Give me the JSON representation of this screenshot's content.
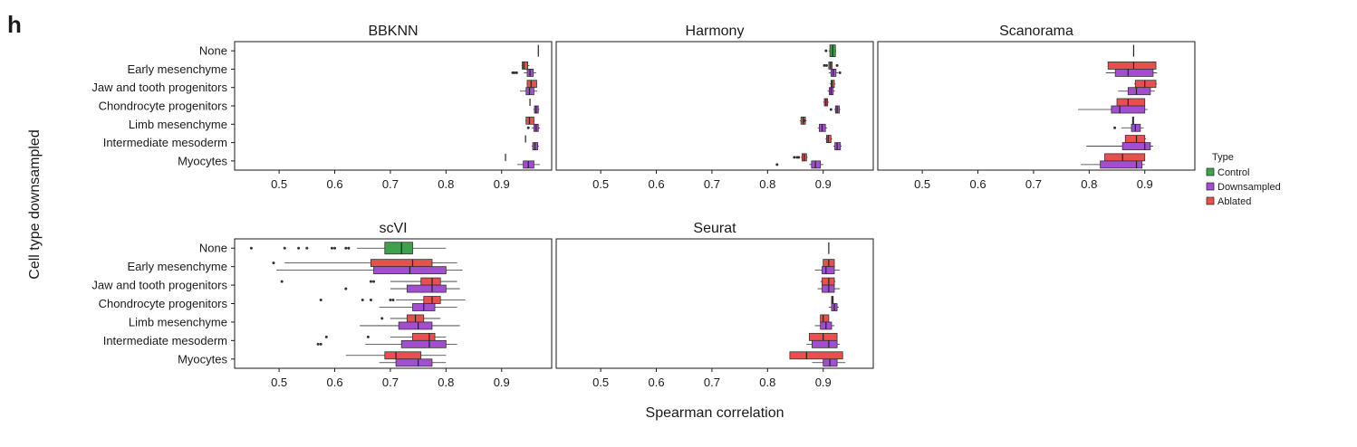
{
  "figure": {
    "panel_letter": "h",
    "y_axis_title": "Cell type downsampled",
    "x_axis_title": "Spearman correlation"
  },
  "legend": {
    "title": "Type",
    "items": [
      {
        "label": "Control",
        "color": "#3fa14b"
      },
      {
        "label": "Downsampled",
        "color": "#a24ed1"
      },
      {
        "label": "Ablated",
        "color": "#e8504f"
      }
    ]
  },
  "chart_data": {
    "type": "boxplot",
    "categories": [
      "None",
      "Early mesenchyme",
      "Jaw and tooth progenitors",
      "Chondrocyte progenitors",
      "Limb mesenchyme",
      "Intermediate mesoderm",
      "Myocytes"
    ],
    "xlim": [
      0.42,
      0.99
    ],
    "ticks": [
      0.5,
      0.6,
      0.7,
      0.8,
      0.9
    ],
    "tick_labels": [
      "0.5",
      "0.6",
      "0.7",
      "0.8",
      "0.9"
    ],
    "colors": {
      "control": "#3fa14b",
      "downsampled": "#a24ed1",
      "ablated": "#e8504f"
    },
    "panels": [
      {
        "title": "BBKNN",
        "boxes": {
          "None": {
            "control": [
              0.966,
              0.966,
              0.966,
              0.966,
              0.966
            ]
          },
          "Early mesenchyme": {
            "ablated": [
              0.936,
              0.937,
              0.94,
              0.947,
              0.95
            ],
            "downsampled": [
              0.94,
              0.946,
              0.951,
              0.957,
              0.962
            ],
            "outliers_downsampled": [
              0.92,
              0.923,
              0.927
            ]
          },
          "Jaw and tooth progenitors": {
            "ablated": [
              0.945,
              0.946,
              0.953,
              0.963,
              0.964
            ],
            "downsampled": [
              0.933,
              0.944,
              0.95,
              0.958,
              0.964
            ]
          },
          "Chondrocyte progenitors": {
            "ablated": [
              0.951,
              0.951,
              0.951,
              0.951,
              0.951
            ],
            "downsampled": [
              0.957,
              0.959,
              0.962,
              0.966,
              0.968
            ]
          },
          "Limb mesenchyme": {
            "ablated": [
              0.943,
              0.944,
              0.95,
              0.958,
              0.959
            ],
            "downsampled": [
              0.954,
              0.958,
              0.962,
              0.966,
              0.969
            ],
            "outliers_downsampled": [
              0.948
            ]
          },
          "Intermediate mesoderm": {
            "ablated": [
              0.943,
              0.943,
              0.943,
              0.943,
              0.943
            ],
            "downsampled": [
              0.954,
              0.956,
              0.96,
              0.965,
              0.967
            ]
          },
          "Myocytes": {
            "ablated": [
              0.907,
              0.907,
              0.907,
              0.907,
              0.907
            ],
            "downsampled": [
              0.928,
              0.939,
              0.948,
              0.958,
              0.969
            ]
          }
        }
      },
      {
        "title": "Harmony",
        "boxes": {
          "None": {
            "control": [
              0.91,
              0.912,
              0.917,
              0.922,
              0.923
            ],
            "outliers_control": [
              0.905
            ]
          },
          "Early mesenchyme": {
            "ablated": [
              0.91,
              0.91,
              0.913,
              0.916,
              0.916
            ],
            "downsampled": [
              0.91,
              0.914,
              0.918,
              0.923,
              0.927
            ],
            "outliers_ablated": [
              0.902,
              0.906,
              0.925
            ],
            "outliers_downsampled": [
              0.93
            ]
          },
          "Jaw and tooth progenitors": {
            "ablated": [
              0.912,
              0.914,
              0.916,
              0.92,
              0.922
            ],
            "downsampled": [
              0.908,
              0.911,
              0.914,
              0.918,
              0.921
            ]
          },
          "Chondrocyte progenitors": {
            "ablated": [
              0.9,
              0.902,
              0.905,
              0.908,
              0.91
            ],
            "downsampled": [
              0.92,
              0.922,
              0.925,
              0.929,
              0.931
            ],
            "outliers_downsampled": [
              0.914
            ]
          },
          "Limb mesenchyme": {
            "ablated": [
              0.858,
              0.86,
              0.864,
              0.868,
              0.87
            ],
            "downsampled": [
              0.89,
              0.893,
              0.898,
              0.904,
              0.907
            ],
            "outliers_ablated": [
              0.866
            ]
          },
          "Intermediate mesoderm": {
            "ablated": [
              0.904,
              0.906,
              0.909,
              0.914,
              0.916
            ],
            "downsampled": [
              0.918,
              0.921,
              0.925,
              0.931,
              0.933
            ]
          },
          "Myocytes": {
            "ablated": [
              0.86,
              0.862,
              0.866,
              0.87,
              0.872
            ],
            "downsampled": [
              0.875,
              0.879,
              0.886,
              0.895,
              0.9
            ],
            "outliers_ablated": [
              0.848,
              0.853,
              0.856
            ],
            "outliers_downsampled": [
              0.817
            ]
          }
        }
      },
      {
        "title": "Scanorama",
        "boxes": {
          "None": {
            "control": [
              0.88,
              0.88,
              0.88,
              0.88,
              0.88
            ]
          },
          "Early mesenchyme": {
            "ablated": [
              0.834,
              0.834,
              0.88,
              0.92,
              0.92
            ],
            "downsampled": [
              0.83,
              0.847,
              0.87,
              0.915,
              0.922
            ]
          },
          "Jaw and tooth progenitors": {
            "ablated": [
              0.881,
              0.883,
              0.9,
              0.92,
              0.922
            ],
            "downsampled": [
              0.852,
              0.87,
              0.885,
              0.91,
              0.918
            ]
          },
          "Chondrocyte progenitors": {
            "ablated": [
              0.85,
              0.85,
              0.87,
              0.9,
              0.9
            ],
            "downsampled": [
              0.78,
              0.84,
              0.855,
              0.9,
              0.905
            ]
          },
          "Limb mesenchyme": {
            "ablated": [
              0.878,
              0.878,
              0.879,
              0.88,
              0.88
            ],
            "downsampled": [
              0.858,
              0.876,
              0.883,
              0.892,
              0.898
            ],
            "outliers_downsampled": [
              0.846
            ]
          },
          "Intermediate mesoderm": {
            "ablated": [
              0.865,
              0.865,
              0.885,
              0.9,
              0.902
            ],
            "downsampled": [
              0.795,
              0.86,
              0.9,
              0.91,
              0.915
            ]
          },
          "Myocytes": {
            "ablated": [
              0.828,
              0.828,
              0.86,
              0.9,
              0.9
            ],
            "downsampled": [
              0.785,
              0.82,
              0.885,
              0.895,
              0.9
            ]
          }
        }
      },
      {
        "title": "scVI",
        "boxes": {
          "None": {
            "control": [
              0.64,
              0.69,
              0.72,
              0.74,
              0.8
            ],
            "outliers_control": [
              0.45,
              0.51,
              0.535,
              0.55,
              0.595,
              0.6,
              0.62,
              0.625
            ]
          },
          "Early mesenchyme": {
            "ablated": [
              0.51,
              0.665,
              0.74,
              0.775,
              0.82
            ],
            "downsampled": [
              0.495,
              0.67,
              0.735,
              0.8,
              0.83
            ],
            "outliers_ablated": [
              0.49
            ]
          },
          "Jaw and tooth progenitors": {
            "ablated": [
              0.7,
              0.755,
              0.775,
              0.79,
              0.82
            ],
            "downsampled": [
              0.7,
              0.73,
              0.775,
              0.8,
              0.825
            ],
            "outliers_ablated": [
              0.505,
              0.665,
              0.67
            ],
            "outliers_downsampled": [
              0.62
            ]
          },
          "Chondrocyte progenitors": {
            "ablated": [
              0.71,
              0.76,
              0.775,
              0.79,
              0.835
            ],
            "downsampled": [
              0.68,
              0.74,
              0.76,
              0.78,
              0.82
            ],
            "outliers_ablated": [
              0.575,
              0.65,
              0.665,
              0.7,
              0.705
            ]
          },
          "Limb mesenchyme": {
            "ablated": [
              0.7,
              0.73,
              0.745,
              0.76,
              0.79
            ],
            "downsampled": [
              0.645,
              0.715,
              0.75,
              0.775,
              0.825
            ],
            "outliers_ablated": [
              0.685
            ]
          },
          "Intermediate mesoderm": {
            "ablated": [
              0.7,
              0.74,
              0.77,
              0.78,
              0.8
            ],
            "downsampled": [
              0.655,
              0.72,
              0.77,
              0.8,
              0.82
            ],
            "outliers_ablated": [
              0.585,
              0.66
            ],
            "outliers_downsampled": [
              0.57,
              0.575
            ]
          },
          "Myocytes": {
            "ablated": [
              0.62,
              0.69,
              0.71,
              0.755,
              0.8
            ],
            "downsampled": [
              0.68,
              0.71,
              0.75,
              0.775,
              0.8
            ]
          }
        }
      },
      {
        "title": "Seurat",
        "boxes": {
          "None": {
            "control": [
              0.91,
              0.91,
              0.91,
              0.91,
              0.91
            ]
          },
          "Early mesenchyme": {
            "ablated": [
              0.9,
              0.9,
              0.91,
              0.92,
              0.92
            ],
            "downsampled": [
              0.885,
              0.898,
              0.905,
              0.92,
              0.93
            ]
          },
          "Jaw and tooth progenitors": {
            "ablated": [
              0.895,
              0.898,
              0.91,
              0.92,
              0.922
            ],
            "downsampled": [
              0.89,
              0.898,
              0.91,
              0.92,
              0.93
            ]
          },
          "Chondrocyte progenitors": {
            "ablated": [
              0.915,
              0.915,
              0.917,
              0.918,
              0.918
            ],
            "downsampled": [
              0.91,
              0.915,
              0.92,
              0.925,
              0.928
            ]
          },
          "Limb mesenchyme": {
            "ablated": [
              0.895,
              0.895,
              0.9,
              0.91,
              0.91
            ],
            "downsampled": [
              0.885,
              0.895,
              0.905,
              0.915,
              0.92
            ]
          },
          "Intermediate mesoderm": {
            "ablated": [
              0.875,
              0.875,
              0.9,
              0.925,
              0.925
            ],
            "downsampled": [
              0.87,
              0.88,
              0.91,
              0.925,
              0.93
            ]
          },
          "Myocytes": {
            "ablated": [
              0.84,
              0.84,
              0.87,
              0.935,
              0.935
            ],
            "downsampled": [
              0.88,
              0.9,
              0.912,
              0.925,
              0.94
            ]
          }
        }
      }
    ]
  }
}
